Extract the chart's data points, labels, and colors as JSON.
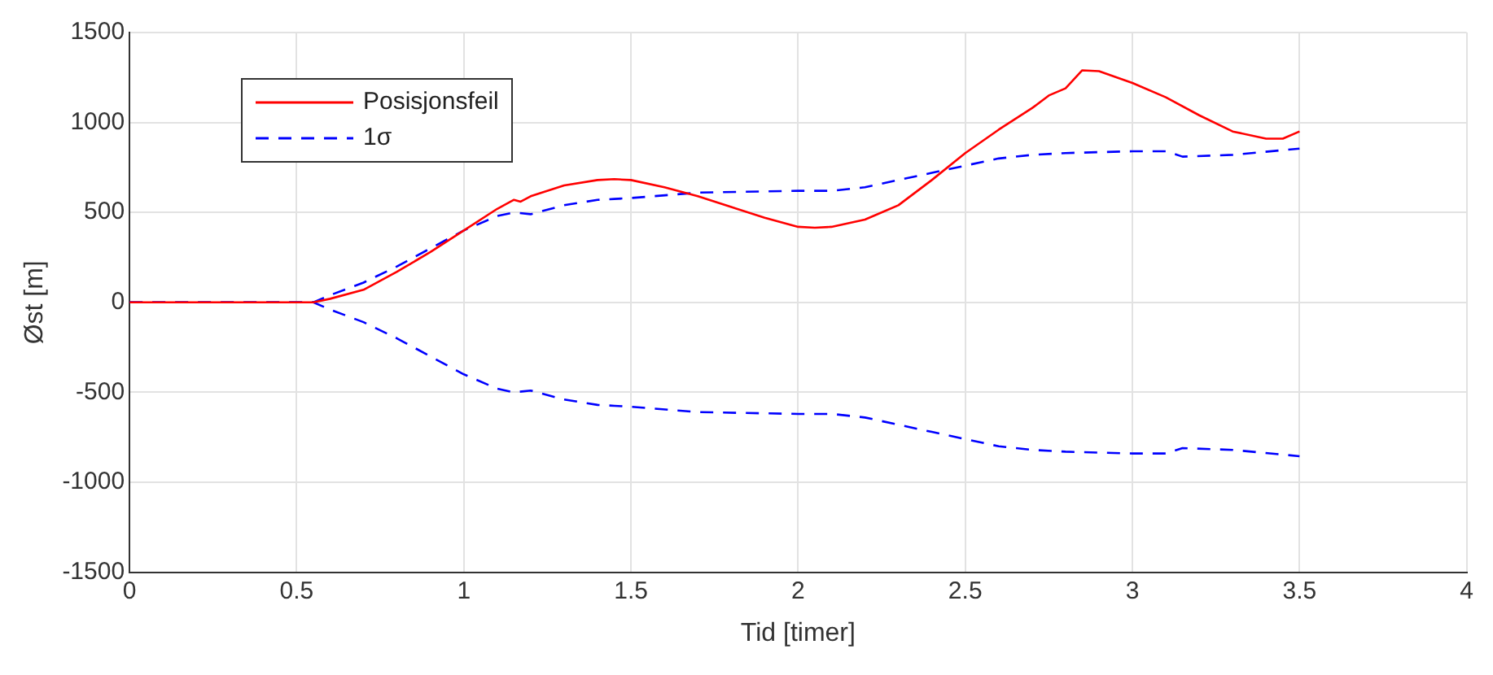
{
  "chart_data": {
    "type": "line",
    "xlabel": "Tid [timer]",
    "ylabel": "Øst [m]",
    "xlim": [
      0,
      4
    ],
    "xticks": [
      0,
      0.5,
      1,
      1.5,
      2,
      2.5,
      3,
      3.5,
      4
    ],
    "ylim": [
      -1500,
      1500
    ],
    "yticks": [
      -1500,
      -1000,
      -500,
      0,
      500,
      1000,
      1500
    ],
    "grid": true,
    "legend": "top left",
    "marker": "none",
    "series": [
      {
        "name": "Posisjonsfeil",
        "color": "#ff0000",
        "line_style": "solid",
        "x": [
          0,
          0.5,
          0.55,
          0.6,
          0.7,
          0.8,
          0.9,
          1.0,
          1.1,
          1.15,
          1.17,
          1.2,
          1.3,
          1.4,
          1.45,
          1.5,
          1.6,
          1.7,
          1.8,
          1.9,
          2.0,
          2.05,
          2.1,
          2.2,
          2.3,
          2.4,
          2.5,
          2.6,
          2.7,
          2.75,
          2.8,
          2.85,
          2.9,
          3.0,
          3.1,
          3.2,
          3.3,
          3.4,
          3.45,
          3.5
        ],
        "values": [
          0,
          0,
          0,
          20,
          70,
          170,
          280,
          400,
          520,
          570,
          560,
          590,
          650,
          680,
          685,
          680,
          640,
          590,
          530,
          470,
          420,
          415,
          420,
          460,
          540,
          680,
          830,
          960,
          1080,
          1150,
          1190,
          1290,
          1285,
          1220,
          1140,
          1040,
          950,
          910,
          910,
          950
        ]
      },
      {
        "name": "1σ",
        "color": "#0000ff",
        "line_style": "dashed",
        "x": [
          0,
          0.5,
          0.55,
          0.6,
          0.7,
          0.8,
          0.9,
          1.0,
          1.1,
          1.15,
          1.2,
          1.3,
          1.4,
          1.45,
          1.5,
          1.7,
          2.0,
          2.1,
          2.2,
          2.3,
          2.4,
          2.5,
          2.6,
          2.7,
          2.8,
          3.0,
          3.1,
          3.15,
          3.3,
          3.5
        ],
        "values": [
          0,
          0,
          0,
          40,
          110,
          200,
          300,
          400,
          480,
          500,
          490,
          540,
          570,
          575,
          580,
          610,
          620,
          620,
          640,
          680,
          720,
          760,
          800,
          820,
          830,
          840,
          840,
          810,
          820,
          855
        ]
      },
      {
        "color": "#0000ff",
        "line_style": "dashed",
        "x": [
          0,
          0.5,
          0.55,
          0.6,
          0.7,
          0.8,
          0.9,
          1.0,
          1.1,
          1.15,
          1.2,
          1.3,
          1.4,
          1.45,
          1.5,
          1.7,
          2.0,
          2.1,
          2.2,
          2.3,
          2.4,
          2.5,
          2.6,
          2.7,
          2.8,
          3.0,
          3.1,
          3.15,
          3.3,
          3.5
        ],
        "values": [
          0,
          0,
          0,
          -40,
          -110,
          -200,
          -300,
          -400,
          -480,
          -500,
          -490,
          -540,
          -570,
          -575,
          -580,
          -610,
          -620,
          -620,
          -640,
          -680,
          -720,
          -760,
          -800,
          -820,
          -830,
          -840,
          -840,
          -810,
          -820,
          -855
        ]
      }
    ]
  }
}
